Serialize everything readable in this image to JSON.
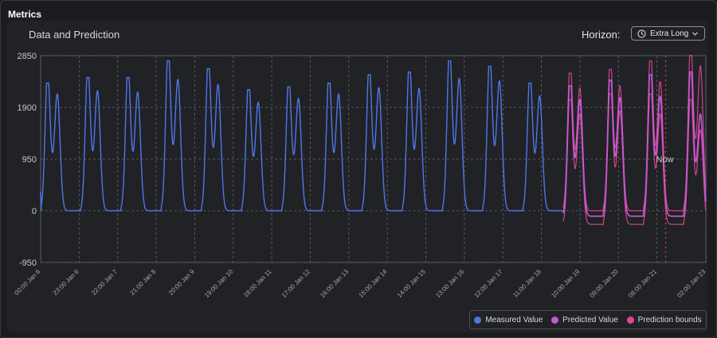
{
  "header": {
    "title": "Metrics"
  },
  "chart_header": {
    "title": "Data and Prediction"
  },
  "horizon": {
    "label": "Horizon:",
    "value": "Extra Long"
  },
  "legend": [
    {
      "label": "Measured Value",
      "color": "#4f76e8"
    },
    {
      "label": "Predicted Value",
      "color": "#c35ad6"
    },
    {
      "label": "Prediction bounds",
      "color": "#e0479b"
    }
  ],
  "chart_data": {
    "type": "line",
    "now_label": "Now",
    "now_day": 15.55,
    "prediction_start_day": 13.0,
    "x_range_days": [
      0,
      16.55
    ],
    "ylim": [
      -950,
      2850
    ],
    "y_ticks": [
      -950,
      0,
      950,
      1900,
      2850
    ],
    "x_tick_labels": [
      "00:00 Jan 6",
      "23:00 Jan 6",
      "22:00 Jan 7",
      "21:00 Jan 8",
      "20:00 Jan 9",
      "19:00 Jan 10",
      "18:00 Jan 11",
      "17:00 Jan 12",
      "16:00 Jan 13",
      "15:00 Jan 14",
      "14:00 Jan 15",
      "13:00 Jan 16",
      "12:00 Jan 17",
      "11:00 Jan 18",
      "10:00 Jan 19",
      "09:00 Jan 20",
      "08:00 Jan 21",
      "02:00 Jan 23"
    ],
    "x_tick_days": [
      0,
      0.958,
      1.917,
      2.875,
      3.833,
      4.792,
      5.75,
      6.708,
      7.667,
      8.625,
      9.583,
      10.542,
      11.5,
      12.458,
      13.417,
      14.375,
      15.333,
      17.083
    ],
    "series": [
      {
        "name": "Measured Value",
        "day_peaks": [
          [
            2300,
            1850
          ],
          [
            2400,
            1900
          ],
          [
            2400,
            1880
          ],
          [
            2700,
            2080
          ],
          [
            2560,
            2000
          ],
          [
            2180,
            1720
          ],
          [
            2230,
            1780
          ],
          [
            2300,
            1850
          ],
          [
            2450,
            1950
          ],
          [
            2500,
            1940
          ],
          [
            2700,
            2100
          ],
          [
            2600,
            2060
          ],
          [
            2300,
            1820
          ]
        ]
      },
      {
        "name": "Predicted Value",
        "day_peaks": [
          [
            2350,
            1850
          ],
          [
            2450,
            1880
          ],
          [
            2550,
            1900
          ],
          [
            2600,
            1620
          ]
        ]
      },
      {
        "name": "Prediction bounds",
        "upper_peaks": [
          [
            2480,
            1950
          ],
          [
            2550,
            1980
          ],
          [
            2700,
            2050
          ],
          [
            2800,
            2300
          ]
        ],
        "lower_peaks": [
          [
            2250,
            1750
          ],
          [
            2350,
            1800
          ],
          [
            2350,
            1750
          ],
          [
            2250,
            1500
          ]
        ]
      }
    ]
  }
}
